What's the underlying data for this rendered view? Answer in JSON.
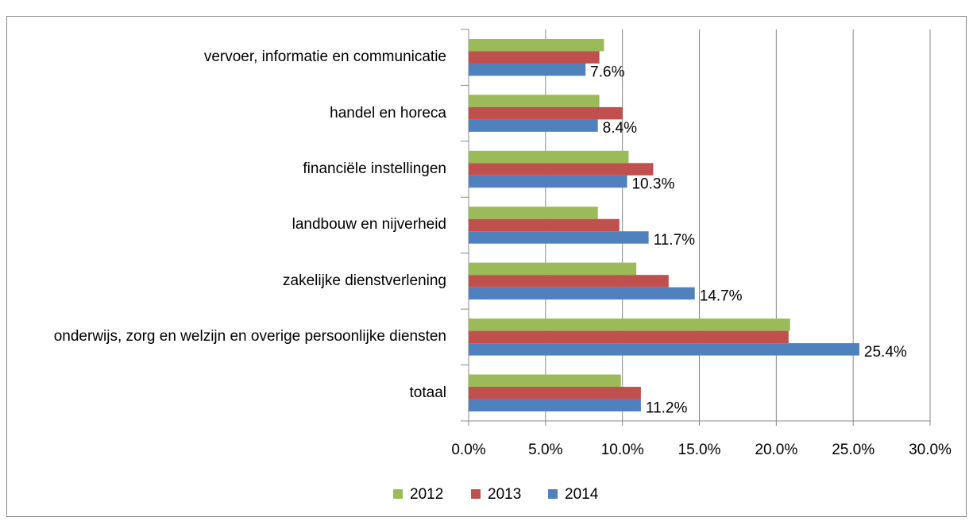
{
  "chart_data": {
    "type": "barh",
    "categories": [
      "vervoer, informatie en communicatie",
      "handel en horeca",
      "financiële instellingen",
      "landbouw en nijverheid",
      "zakelijke dienstverlening",
      "onderwijs, zorg en welzijn en overige persoonlijke diensten",
      "totaal"
    ],
    "series": [
      {
        "name": "2012",
        "color": "#9bbb59",
        "values": [
          8.8,
          8.5,
          10.4,
          8.4,
          10.9,
          20.9,
          9.9
        ]
      },
      {
        "name": "2013",
        "color": "#c0504d",
        "values": [
          8.5,
          10.0,
          12.0,
          9.8,
          13.0,
          20.8,
          11.2
        ]
      },
      {
        "name": "2014",
        "color": "#4f81bd",
        "values": [
          7.6,
          8.4,
          10.3,
          11.7,
          14.7,
          25.4,
          11.2
        ],
        "value_labels": [
          "7.6%",
          "8.4%",
          "10.3%",
          "11.7%",
          "14.7%",
          "25.4%",
          "11.2%"
        ]
      }
    ],
    "xlim": [
      0,
      30
    ],
    "xticks": [
      {
        "value": 0,
        "label": "0.0%"
      },
      {
        "value": 5,
        "label": "5.0%"
      },
      {
        "value": 10,
        "label": "10.0%"
      },
      {
        "value": 15,
        "label": "15.0%"
      },
      {
        "value": 20,
        "label": "20.0%"
      },
      {
        "value": 25,
        "label": "25.0%"
      },
      {
        "value": 30,
        "label": "30.0%"
      }
    ],
    "grid": true,
    "legend": "bottom"
  }
}
